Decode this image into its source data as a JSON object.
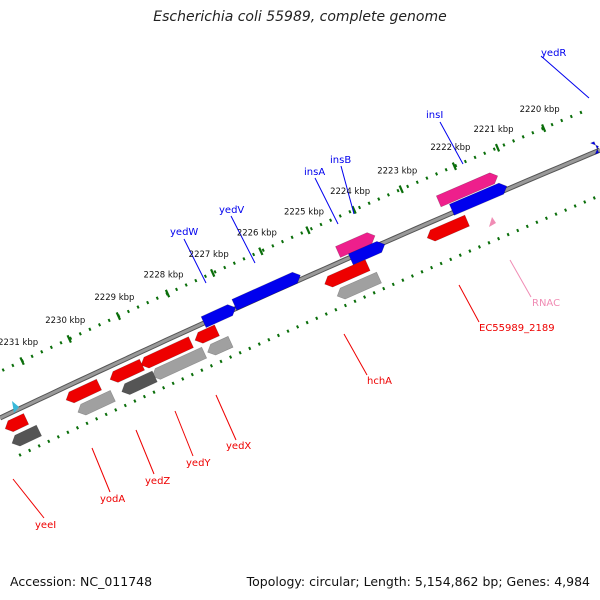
{
  "title": "Escherichia coli 55989, complete genome",
  "footer": {
    "accession": "Accession: NC_011748",
    "topology": "Topology: circular; Length: 5,154,862 bp; Genes: 4,984"
  },
  "colors": {
    "forward_gene": "#0000ee",
    "reverse_gene": "#ee0000",
    "mobile_element": "#ee1f8c",
    "rna": "#f08cb4",
    "cds_gray": "#a0a0a0",
    "cds_dark": "#555555",
    "ticks": "#0a6e0a",
    "backbone": "#888888"
  },
  "ruler": [
    {
      "label": "2220 kbp"
    },
    {
      "label": "2221 kbp"
    },
    {
      "label": "2222 kbp"
    },
    {
      "label": "2223 kbp"
    },
    {
      "label": "2224 kbp"
    },
    {
      "label": "2225 kbp"
    },
    {
      "label": "2226 kbp"
    },
    {
      "label": "2227 kbp"
    },
    {
      "label": "2228 kbp"
    },
    {
      "label": "2229 kbp"
    },
    {
      "label": "2230 kbp"
    },
    {
      "label": "2231 kbp"
    }
  ],
  "gene_labels": [
    {
      "name": "yedR",
      "strand": "forward"
    },
    {
      "name": "insI",
      "strand": "forward"
    },
    {
      "name": "insB",
      "strand": "forward"
    },
    {
      "name": "insA",
      "strand": "forward"
    },
    {
      "name": "yedV",
      "strand": "forward"
    },
    {
      "name": "yedW",
      "strand": "forward"
    },
    {
      "name": "RNAC",
      "strand": "rna"
    },
    {
      "name": "EC55989_2189",
      "strand": "reverse"
    },
    {
      "name": "hchA",
      "strand": "reverse"
    },
    {
      "name": "yedX",
      "strand": "reverse"
    },
    {
      "name": "yedY",
      "strand": "reverse"
    },
    {
      "name": "yedZ",
      "strand": "reverse"
    },
    {
      "name": "yodA",
      "strand": "reverse"
    },
    {
      "name": "yeeI",
      "strand": "reverse"
    }
  ]
}
